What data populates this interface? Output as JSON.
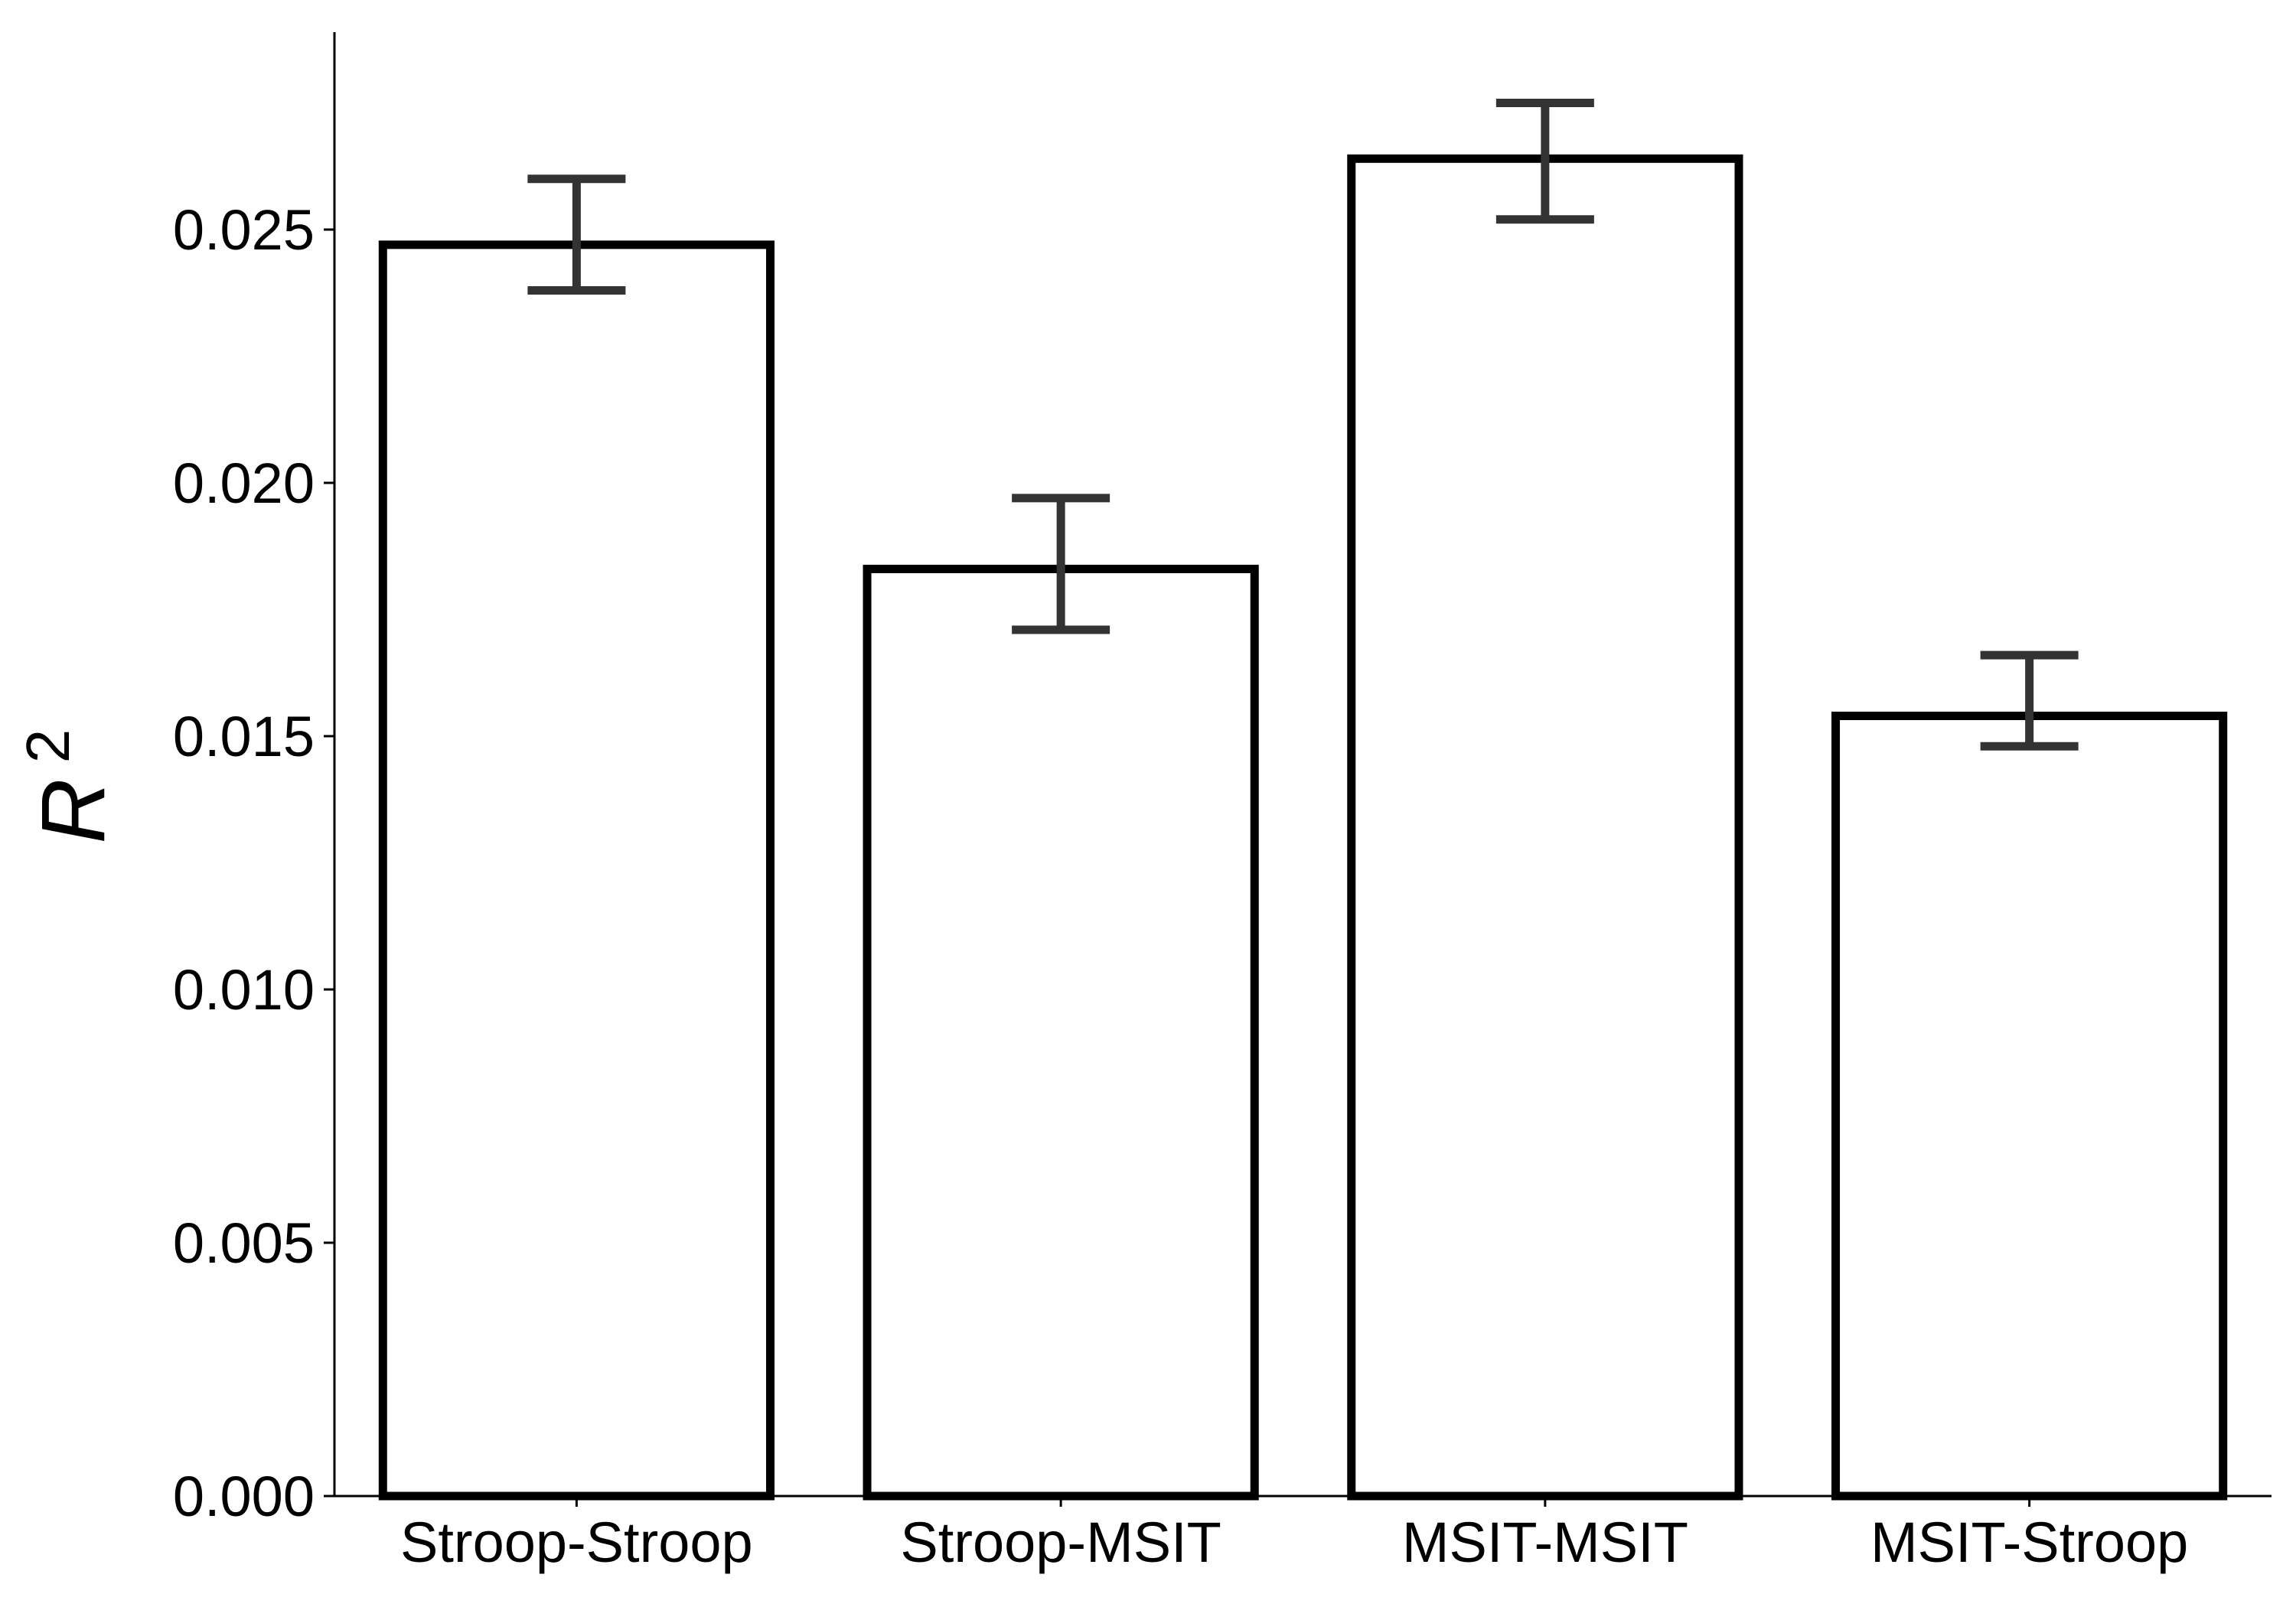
{
  "chart_data": {
    "type": "bar",
    "title": "",
    "xlabel": "",
    "ylabel": "R",
    "ylabel_superscript": "2",
    "categories": [
      "Stroop-Stroop",
      "Stroop-MSIT",
      "MSIT-MSIT",
      "MSIT-Stroop"
    ],
    "values": [
      0.0247,
      0.0183,
      0.0264,
      0.0154
    ],
    "error_low": [
      0.0238,
      0.0171,
      0.0252,
      0.0148
    ],
    "error_high": [
      0.026,
      0.0197,
      0.0275,
      0.0166
    ],
    "ylim": [
      0,
      0.029
    ],
    "yticks": [
      0.0,
      0.005,
      0.01,
      0.015,
      0.02,
      0.025
    ],
    "ytick_labels": [
      "0.000",
      "0.005",
      "0.010",
      "0.015",
      "0.020",
      "0.025"
    ],
    "grid": false,
    "legend": "none",
    "colors": {
      "bar_fill": "#ffffff",
      "bar_edge": "#000000",
      "errorbar": "#333333",
      "axis": "#000000"
    }
  }
}
